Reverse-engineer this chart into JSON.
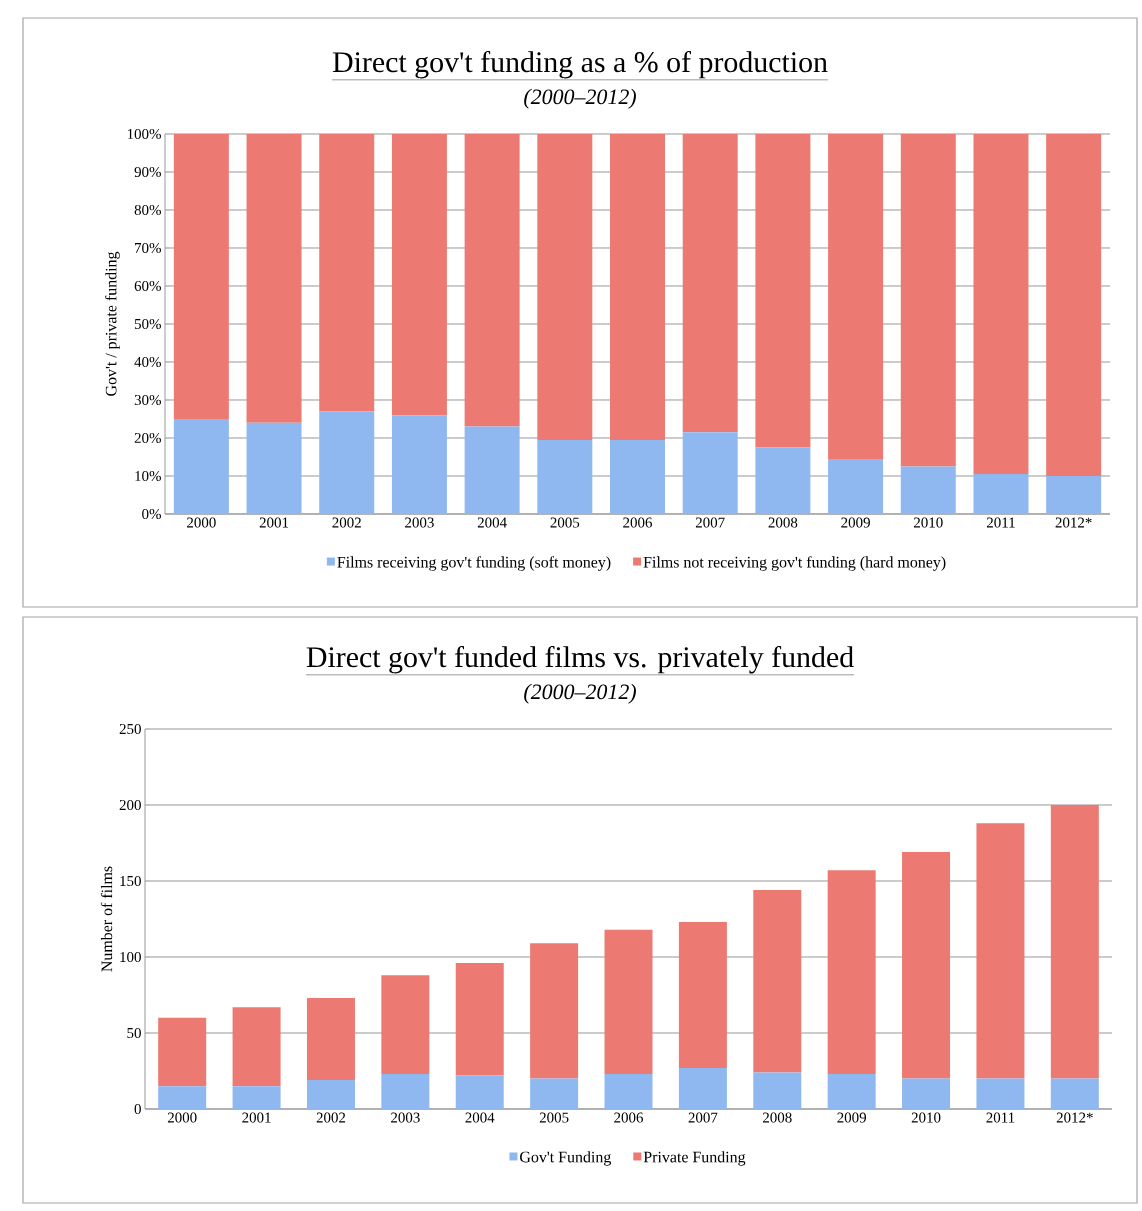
{
  "chart_data": [
    {
      "type": "bar",
      "title": "Direct gov't funding as a % of production",
      "subtitle": "(2000–2012)",
      "ylabel": "Gov't / private funding",
      "categories": [
        "2000",
        "2001",
        "2002",
        "2003",
        "2004",
        "2005",
        "2006",
        "2007",
        "2008",
        "2009",
        "2010",
        "2011",
        "2012*"
      ],
      "series": [
        {
          "name": "Films receiving gov't funding (soft money)",
          "color": "#8fb8f0",
          "values": [
            25,
            24,
            27,
            26,
            23,
            19.5,
            19.5,
            21.5,
            17.5,
            14.5,
            12.5,
            10.5,
            10
          ]
        },
        {
          "name": "Films not receiving gov't funding (hard money)",
          "color": "#ec7a72",
          "values": [
            75,
            76,
            73,
            74,
            77,
            80.5,
            80.5,
            78.5,
            82.5,
            85.5,
            87.5,
            89.5,
            90
          ]
        }
      ],
      "stacked": true,
      "ylim": [
        0,
        100
      ],
      "yticks": [
        {
          "value": 0,
          "label": "0%"
        },
        {
          "value": 10,
          "label": "10%"
        },
        {
          "value": 20,
          "label": "20%"
        },
        {
          "value": 30,
          "label": "30%"
        },
        {
          "value": 40,
          "label": "40%"
        },
        {
          "value": 50,
          "label": "50%"
        },
        {
          "value": 60,
          "label": "60%"
        },
        {
          "value": 70,
          "label": "70%"
        },
        {
          "value": 80,
          "label": "80%"
        },
        {
          "value": 90,
          "label": "90%"
        },
        {
          "value": 100,
          "label": "100%"
        }
      ],
      "grid": "y",
      "legend": "bottom"
    },
    {
      "type": "bar",
      "title": "Direct gov't funded films vs. privately funded",
      "subtitle": "(2000–2012)",
      "ylabel": "Number of films",
      "categories": [
        "2000",
        "2001",
        "2002",
        "2003",
        "2004",
        "2005",
        "2006",
        "2007",
        "2008",
        "2009",
        "2010",
        "2011",
        "2012*"
      ],
      "series": [
        {
          "name": "Gov't Funding",
          "color": "#8fb8f0",
          "values": [
            15,
            15,
            19,
            23,
            22,
            20,
            23,
            27,
            24,
            23,
            20,
            20,
            20
          ]
        },
        {
          "name": "Private Funding",
          "color": "#ec7a72",
          "values": [
            45,
            52,
            54,
            65,
            74,
            89,
            95,
            96,
            120,
            134,
            149,
            168,
            180
          ]
        }
      ],
      "stacked": true,
      "ylim": [
        0,
        250
      ],
      "yticks": [
        0,
        50,
        100,
        150,
        200,
        250
      ],
      "grid": "y",
      "legend": "bottom"
    }
  ]
}
